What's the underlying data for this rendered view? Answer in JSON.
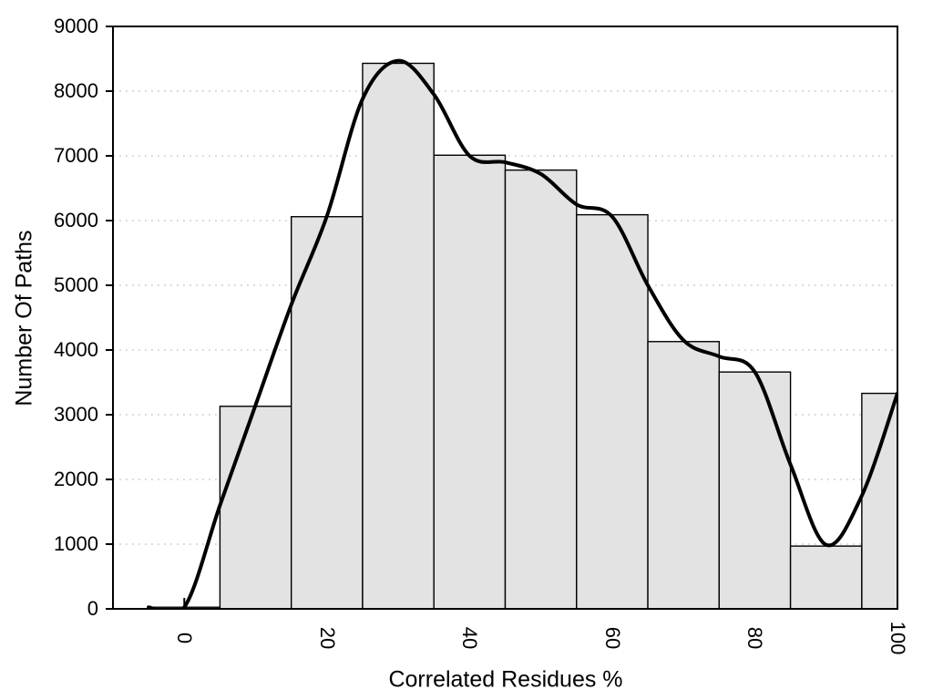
{
  "chart_data": {
    "type": "bar",
    "subtype": "histogram-with-smooth-curve",
    "title": "",
    "xlabel": "Correlated Residues %",
    "ylabel": "Number Of Paths",
    "xlim": [
      -10,
      100
    ],
    "ylim": [
      0,
      9000
    ],
    "x_ticks": [
      0,
      20,
      40,
      60,
      80,
      100
    ],
    "y_ticks": [
      0,
      1000,
      2000,
      3000,
      4000,
      5000,
      6000,
      7000,
      8000,
      9000
    ],
    "grid": {
      "horizontal_dotted": true,
      "vertical": false
    },
    "legend": "none",
    "bins": [
      {
        "x0": -5,
        "x1": 5,
        "count": 25
      },
      {
        "x0": 5,
        "x1": 15,
        "count": 3130
      },
      {
        "x0": 15,
        "x1": 25,
        "count": 6060
      },
      {
        "x0": 25,
        "x1": 35,
        "count": 8430
      },
      {
        "x0": 35,
        "x1": 45,
        "count": 7010
      },
      {
        "x0": 45,
        "x1": 55,
        "count": 6780
      },
      {
        "x0": 55,
        "x1": 65,
        "count": 6090
      },
      {
        "x0": 65,
        "x1": 75,
        "count": 4130
      },
      {
        "x0": 75,
        "x1": 85,
        "count": 3660
      },
      {
        "x0": 85,
        "x1": 95,
        "count": 970
      },
      {
        "x0": 95,
        "x1": 100,
        "count": 3330
      }
    ],
    "smooth_curve_points": [
      [
        -5,
        25
      ],
      [
        0,
        25
      ],
      [
        5,
        1600
      ],
      [
        10,
        3150
      ],
      [
        15,
        4700
      ],
      [
        20,
        6070
      ],
      [
        25,
        7880
      ],
      [
        30,
        8470
      ],
      [
        35,
        7950
      ],
      [
        40,
        7000
      ],
      [
        45,
        6900
      ],
      [
        50,
        6720
      ],
      [
        55,
        6250
      ],
      [
        60,
        6060
      ],
      [
        65,
        5000
      ],
      [
        70,
        4150
      ],
      [
        75,
        3900
      ],
      [
        80,
        3660
      ],
      [
        85,
        2230
      ],
      [
        90,
        990
      ],
      [
        95,
        1750
      ],
      [
        100,
        3330
      ]
    ],
    "colors": {
      "background": "#ffffff",
      "bar_fill": "#e3e3e3",
      "bar_border": "#000000",
      "curve": "#000000",
      "frame": "#000000",
      "grid": "#c2c2c2",
      "text": "#000000"
    }
  }
}
